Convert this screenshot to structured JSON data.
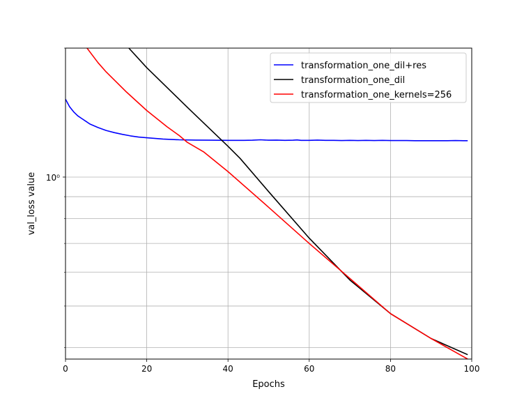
{
  "chart_data": {
    "type": "line",
    "title": "",
    "xlabel": "Epochs",
    "ylabel": "val_loss value",
    "xlim": [
      0,
      100
    ],
    "ylim": [
      0.376,
      2.0
    ],
    "yscale": "log",
    "grid": true,
    "legend_position": "top-right",
    "x_ticks": [
      0,
      20,
      40,
      60,
      80,
      100
    ],
    "x_tick_labels": [
      "0",
      "20",
      "40",
      "60",
      "80",
      "100"
    ],
    "y_major_ticks": [
      1.0
    ],
    "y_major_tick_labels": [
      "10⁰"
    ],
    "y_minor_ticks": [
      0.4,
      0.5,
      0.6,
      0.7,
      0.8,
      0.9
    ],
    "series": [
      {
        "name": "transformation_one_dil+res",
        "color": "#0000ff",
        "x": [
          0,
          1,
          2,
          3,
          4,
          5,
          6,
          8,
          10,
          12,
          14,
          16,
          18,
          20,
          24,
          28,
          32,
          36,
          40,
          44,
          46,
          48,
          50,
          52,
          54,
          56,
          57,
          58,
          60,
          62,
          64,
          66,
          68,
          70,
          72,
          74,
          76,
          78,
          80,
          82,
          84,
          86,
          88,
          90,
          92,
          94,
          96,
          98,
          99
        ],
        "y": [
          1.52,
          1.46,
          1.42,
          1.39,
          1.37,
          1.35,
          1.33,
          1.305,
          1.285,
          1.27,
          1.258,
          1.248,
          1.24,
          1.235,
          1.227,
          1.222,
          1.22,
          1.219,
          1.218,
          1.218,
          1.219,
          1.222,
          1.219,
          1.22,
          1.218,
          1.219,
          1.221,
          1.218,
          1.218,
          1.22,
          1.218,
          1.218,
          1.217,
          1.218,
          1.217,
          1.218,
          1.217,
          1.218,
          1.217,
          1.217,
          1.217,
          1.216,
          1.216,
          1.216,
          1.216,
          1.216,
          1.217,
          1.216,
          1.216
        ]
      },
      {
        "name": "transformation_one_dil",
        "color": "#000000",
        "x": [
          15.6,
          20,
          30,
          40,
          43,
          50,
          60,
          70,
          80,
          90,
          99
        ],
        "y": [
          2.0,
          1.8,
          1.455,
          1.18,
          1.105,
          0.925,
          0.72,
          0.575,
          0.48,
          0.42,
          0.385
        ]
      },
      {
        "name": "transformation_one_kernels=256",
        "color": "#ff0000",
        "x": [
          5.3,
          8,
          10,
          15,
          20,
          25,
          28,
          30,
          34,
          40,
          50,
          60,
          70,
          80,
          90,
          99
        ],
        "y": [
          2.0,
          1.85,
          1.76,
          1.58,
          1.43,
          1.31,
          1.25,
          1.205,
          1.145,
          1.03,
          0.85,
          0.7,
          0.58,
          0.48,
          0.42,
          0.376
        ]
      }
    ]
  }
}
